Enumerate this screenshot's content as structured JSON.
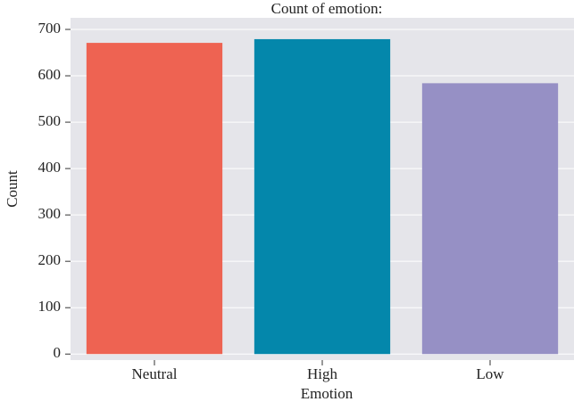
{
  "chart_data": {
    "type": "bar",
    "title": "Count of emotion:",
    "x_label": "Emotion",
    "y_label": "Count",
    "categories": [
      "Neutral",
      "High",
      "Low"
    ],
    "values": [
      671,
      679,
      584
    ],
    "colors": [
      "#ee6352",
      "#0487ab",
      "#9690c5"
    ],
    "ylim": [
      -13,
      725
    ],
    "yticks": [
      0,
      100,
      200,
      300,
      400,
      500,
      600,
      700
    ],
    "grid": true
  }
}
